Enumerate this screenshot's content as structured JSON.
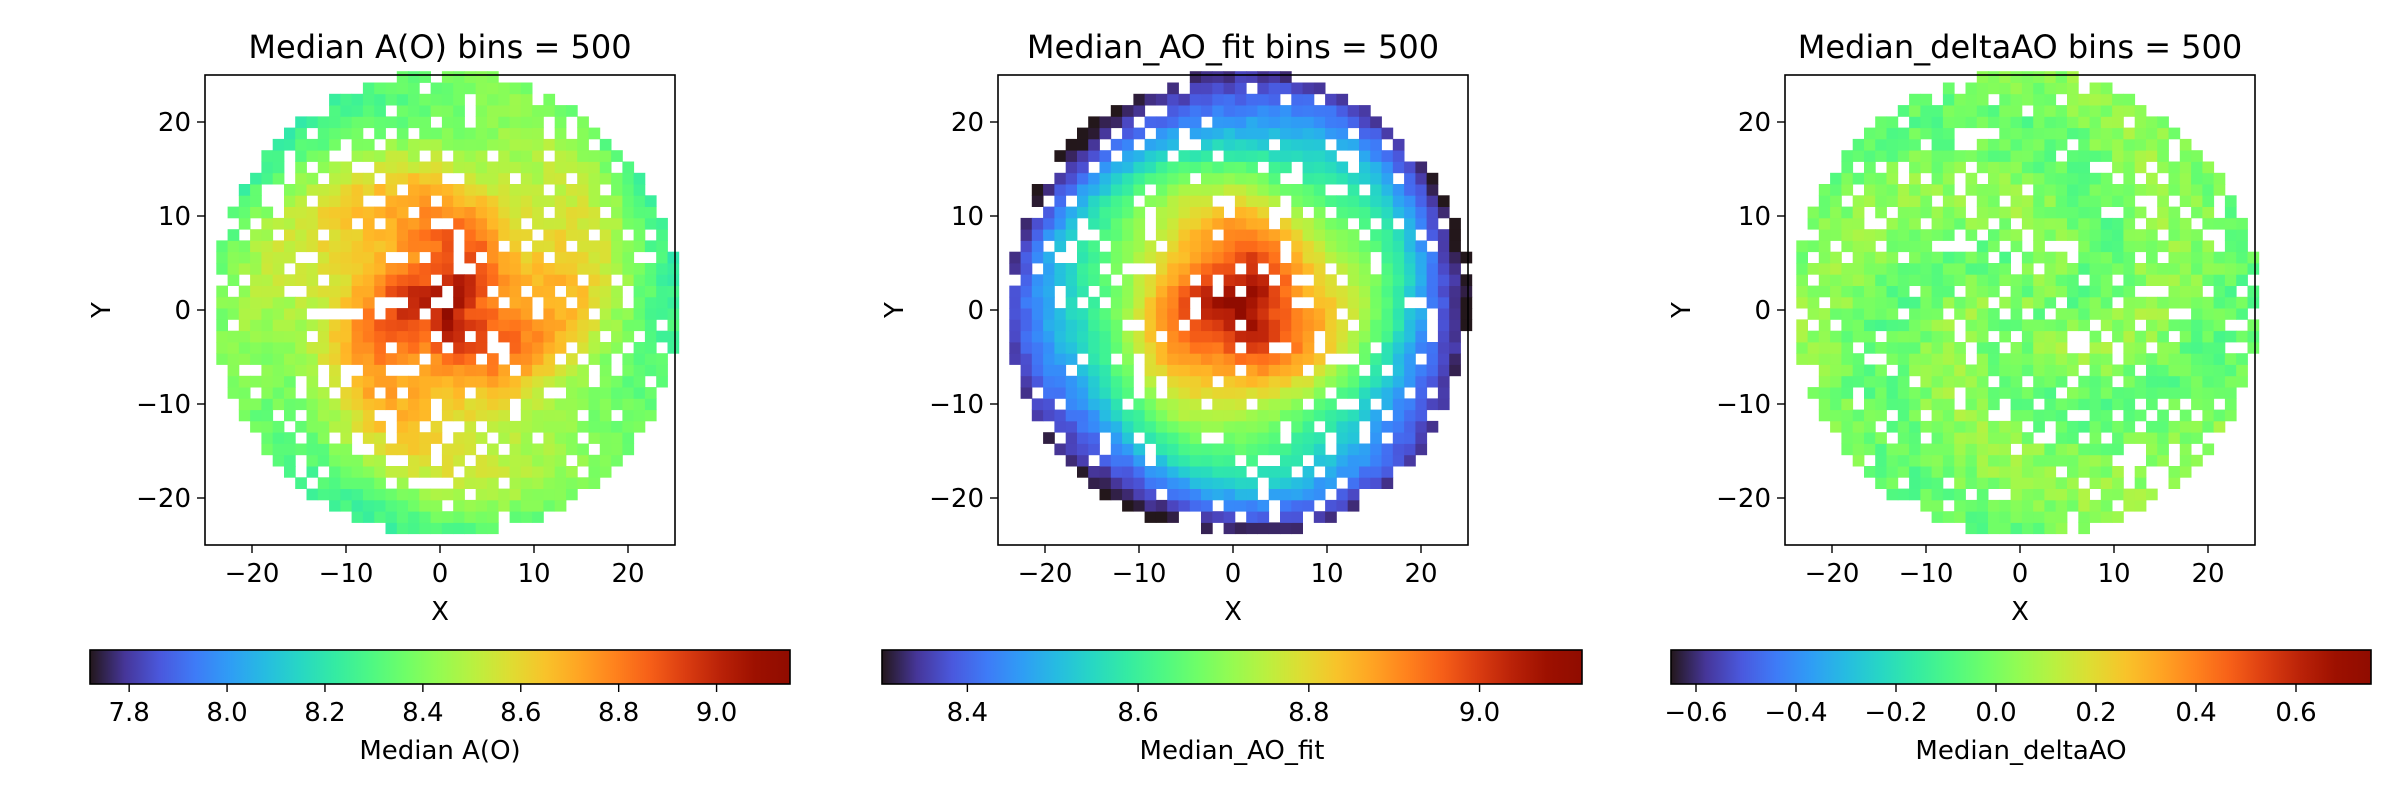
{
  "chart_data": [
    {
      "type": "heatmap",
      "title": "Median A(O) bins = 500",
      "xlabel": "X",
      "ylabel": "Y",
      "xlim": [
        -25,
        25
      ],
      "ylim": [
        -25,
        25
      ],
      "xticks": [
        "−20",
        "−10",
        "0",
        "10",
        "20"
      ],
      "yticks": [
        "20",
        "10",
        "0",
        "−10",
        "−20"
      ],
      "colormap": "turbo",
      "colorbar_label": "Median A(O)",
      "colorbar_range": [
        7.72,
        9.15
      ],
      "colorbar_ticks": [
        "7.8",
        "8.0",
        "8.2",
        "8.4",
        "8.6",
        "8.8",
        "9.0"
      ],
      "field_shape": "disk, radius 25, spiral pattern",
      "center_value": 9.15,
      "edge_value": 8.3
    },
    {
      "type": "heatmap",
      "title": "Median_AO_fit bins = 500",
      "xlabel": "X",
      "ylabel": "Y",
      "xlim": [
        -25,
        25
      ],
      "ylim": [
        -25,
        25
      ],
      "xticks": [
        "−20",
        "−10",
        "0",
        "10",
        "20"
      ],
      "yticks": [
        "20",
        "10",
        "0",
        "−10",
        "−20"
      ],
      "colormap": "turbo",
      "colorbar_label": "Median_AO_fit",
      "colorbar_range": [
        8.3,
        9.12
      ],
      "colorbar_ticks": [
        "8.4",
        "8.6",
        "8.8",
        "9.0"
      ],
      "field_shape": "disk, radius 25, radial gradient",
      "center_value": 9.12,
      "edge_value": 8.3
    },
    {
      "type": "heatmap",
      "title": "Median_deltaAO bins = 500",
      "xlabel": "X",
      "ylabel": "Y",
      "xlim": [
        -25,
        25
      ],
      "ylim": [
        -25,
        25
      ],
      "xticks": [
        "−20",
        "−10",
        "0",
        "10",
        "20"
      ],
      "yticks": [
        "20",
        "10",
        "0",
        "−10",
        "−20"
      ],
      "colormap": "turbo",
      "colorbar_label": "Median_deltaAO",
      "colorbar_ticks": [
        "−0.6",
        "−0.4",
        "−0.2",
        "0.0",
        "0.2",
        "0.4",
        "0.6"
      ],
      "colorbar_range": [
        -0.65,
        0.75
      ],
      "field_shape": "disk, radius 25, near-zero with spiral residuals",
      "center_value": 0.0,
      "edge_value": 0.0
    }
  ]
}
